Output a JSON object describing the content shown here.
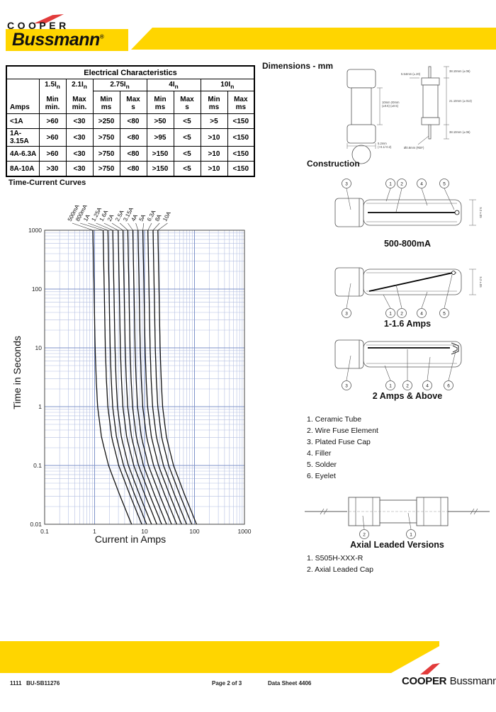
{
  "header": {
    "brand_top": "COOPER",
    "brand_main": "Bussmann",
    "registered": "®"
  },
  "sections": {
    "electrical": {
      "title": "Electrical Characteristics",
      "amps_header": "Amps",
      "col_groups": [
        {
          "label": "1.5I",
          "sub": "n",
          "span": 1
        },
        {
          "label": "2.1I",
          "sub": "n",
          "span": 1
        },
        {
          "label": "2.75I",
          "sub": "n",
          "span": 2
        },
        {
          "label": "4I",
          "sub": "n",
          "span": 2
        },
        {
          "label": "10I",
          "sub": "n",
          "span": 2
        }
      ],
      "sub_headers": [
        [
          "Min",
          "min."
        ],
        [
          "Max",
          "min."
        ],
        [
          "Min",
          "ms"
        ],
        [
          "Max",
          "s"
        ],
        [
          "Min",
          "ms"
        ],
        [
          "Max",
          "s"
        ],
        [
          "Min",
          "ms"
        ],
        [
          "Max",
          "ms"
        ]
      ],
      "rows": [
        [
          "<1A",
          ">60",
          "<30",
          ">250",
          "<80",
          ">50",
          "<5",
          ">5",
          "<150"
        ],
        [
          "1A-3.15A",
          ">60",
          "<30",
          ">750",
          "<80",
          ">95",
          "<5",
          ">10",
          "<150"
        ],
        [
          "4A-6.3A",
          ">60",
          "<30",
          ">750",
          "<80",
          ">150",
          "<5",
          ">10",
          "<150"
        ],
        [
          "8A-10A",
          ">30",
          "<30",
          ">750",
          "<80",
          ">150",
          "<5",
          ">10",
          "<150"
        ]
      ]
    },
    "time_current": {
      "heading": "Time-Current Curves",
      "chart_data": {
        "type": "line",
        "title": "Time-Current Curves",
        "xlabel": "Current in Amps",
        "ylabel": "Time in Seconds",
        "xscale": "log",
        "yscale": "log",
        "xlim": [
          0.1,
          1000
        ],
        "ylim": [
          0.01,
          1000
        ],
        "x_ticks": [
          "0.1",
          "1",
          "10",
          "100",
          "1000"
        ],
        "y_ticks": [
          "1000",
          "100",
          "10",
          "1",
          "0.1",
          "0.01"
        ],
        "grid": true,
        "legend_position": "rotated labels above plot",
        "series": [
          {
            "name": "500mA",
            "rating_amps": 0.5
          },
          {
            "name": "800mA",
            "rating_amps": 0.8
          },
          {
            "name": "1A",
            "rating_amps": 1.0
          },
          {
            "name": "1.25A",
            "rating_amps": 1.25
          },
          {
            "name": "1.6A",
            "rating_amps": 1.6
          },
          {
            "name": "2A",
            "rating_amps": 2.0
          },
          {
            "name": "2.5A",
            "rating_amps": 2.5
          },
          {
            "name": "3.15A",
            "rating_amps": 3.15
          },
          {
            "name": "4A",
            "rating_amps": 4.0
          },
          {
            "name": "5A",
            "rating_amps": 5.0
          },
          {
            "name": "6.3A",
            "rating_amps": 6.3
          },
          {
            "name": "8A",
            "rating_amps": 8.0
          },
          {
            "name": "10A",
            "rating_amps": 10.0
          }
        ],
        "time_points_s": [
          1000,
          300,
          100,
          30,
          10,
          3,
          1,
          0.3,
          0.1,
          0.03,
          0.01
        ],
        "current_multiplier_of_rating": [
          1.85,
          1.9,
          1.95,
          2.0,
          2.05,
          2.15,
          2.3,
          2.75,
          3.8,
          6.5,
          11
        ]
      }
    },
    "dimensions": {
      "heading": "Dimensions - mm",
      "cartridge": {
        "body_length": "10mm 20mm",
        "body_length_tol": "(±0.5) (±0.5)",
        "diameter": "5.2mm",
        "diameter_tol": "(+0.1/-0.2)"
      },
      "axial_dims": {
        "lead_top": "38.10mm (±.06)",
        "cap_length": "5.54mm (±.20)",
        "overall": "21.10mm (±.013)",
        "lead_bottom": "38.10mm (±.06)",
        "lead_diameter": "Ø0.8mm (REF)"
      }
    },
    "construction": {
      "heading": "Construction",
      "figures": [
        {
          "caption": "500-800mA",
          "callouts": [
            "3",
            "1",
            "2",
            "4",
            "5"
          ],
          "side_dim": "5.2 ±.05"
        },
        {
          "caption": "1-1.6 Amps",
          "callouts": [
            "3",
            "1",
            "2",
            "4",
            "5"
          ],
          "side_dim": "5.2 ±.05"
        },
        {
          "caption": "2 Amps & Above",
          "callouts": [
            "3",
            "1",
            "2",
            "4",
            "6"
          ],
          "side_dim": ""
        }
      ],
      "parts": [
        "1. Ceramic Tube",
        "2. Wire Fuse Element",
        "3. Plated Fuse Cap",
        "4. Filler",
        "5. Solder",
        "6. Eyelet"
      ]
    },
    "axial": {
      "caption": "Axial Leaded Versions",
      "callouts": [
        "2",
        "1"
      ],
      "items": [
        "1. S505H-XXX-R",
        "2. Axial Leaded Cap"
      ]
    }
  },
  "footer": {
    "left_code_1": "1111",
    "left_code_2": "BU-SB11276",
    "page": "Page 2 of 3",
    "datasheet": "Data Sheet 4406",
    "brand_bold": "COOPER",
    "brand_regular": "Bussmann"
  },
  "colors": {
    "brand_yellow": "#ffd500",
    "brand_red": "#e23b3b",
    "grid_major": "#7f93c9",
    "grid_minor": "#b3bfe2",
    "curve": "#111111"
  }
}
